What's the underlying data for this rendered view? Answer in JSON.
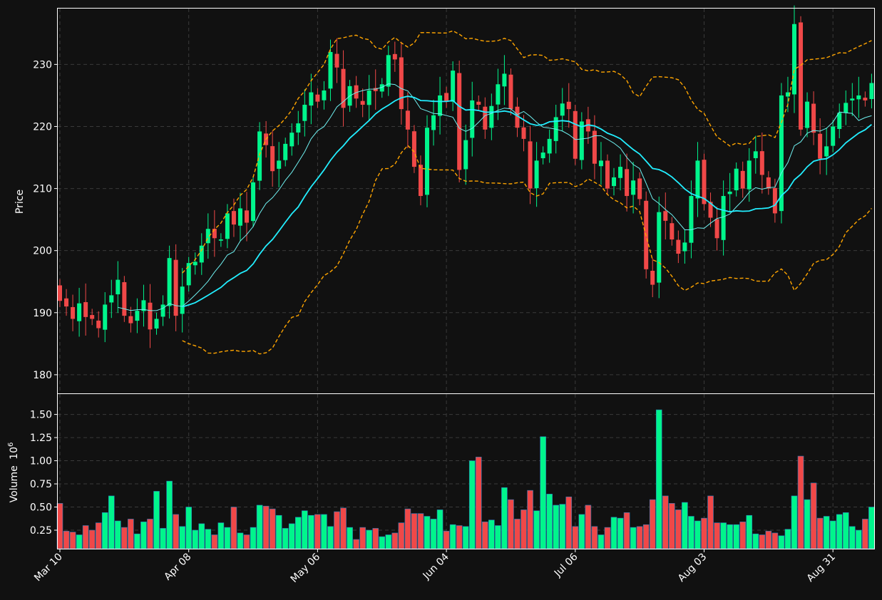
{
  "chart_data": {
    "type": "candlestick",
    "colors": {
      "background": "#111111",
      "up": "#00f58c",
      "down": "#f04848",
      "ma_fast": "#6ff0f0",
      "ma_slow": "#22eeff",
      "bands": "#ffa500",
      "grid": "#3a3a3a",
      "frame": "#ffffff"
    },
    "price_panel": {
      "ylabel": "Price",
      "ylim": [
        177,
        239
      ],
      "yticks": [
        180,
        190,
        200,
        210,
        220,
        230
      ],
      "grid": true
    },
    "volume_panel": {
      "ylabel": "Volume",
      "ylabel_exponent": "10",
      "ylabel_exponent_power": "6",
      "ylim": [
        0.05,
        1.72
      ],
      "yticks": [
        "0.25",
        "0.50",
        "0.75",
        "1.00",
        "1.25",
        "1.50"
      ],
      "ytick_values": [
        0.25,
        0.5,
        0.75,
        1.0,
        1.25,
        1.5
      ],
      "grid": true
    },
    "x_axis": {
      "tick_labels": [
        "Mar 10",
        "Apr 08",
        "May 06",
        "Jun 04",
        "Jul 06",
        "Aug 03",
        "Aug 31"
      ],
      "tick_positions": [
        0,
        20,
        40,
        60,
        80,
        100,
        120
      ],
      "n_days": 127,
      "label_rotation": 45
    },
    "closes": [
      191.9,
      191.0,
      189.0,
      191.5,
      189.3,
      189.0,
      187.5,
      191.3,
      192.8,
      195.3,
      189.5,
      188.3,
      190.3,
      192.0,
      187.3,
      189.0,
      191.3,
      198.8,
      189.5,
      194.2,
      198.0,
      198.2,
      200.8,
      203.5,
      202.0,
      201.8,
      206.0,
      204.2,
      206.8,
      204.5,
      211.0,
      219.2,
      217.0,
      212.8,
      214.5,
      217.2,
      219.0,
      220.5,
      223.5,
      225.5,
      224.0,
      225.8,
      232.0,
      229.5,
      223.0,
      226.5,
      224.5,
      223.5,
      225.8,
      225.7,
      226.8,
      231.5,
      230.8,
      222.8,
      219.5,
      213.5,
      208.8,
      219.8,
      221.8,
      225.0,
      224.0,
      229.0,
      213.0,
      217.8,
      224.2,
      223.5,
      219.5,
      223.3,
      226.8,
      228.5,
      222.8,
      219.8,
      218.0,
      210.0,
      214.5,
      215.8,
      218.0,
      221.5,
      223.7,
      222.8,
      214.8,
      220.8,
      219.2,
      214.0,
      214.5,
      210.0,
      211.8,
      213.5,
      208.8,
      211.3,
      208.3,
      197.0,
      194.5,
      206.2,
      204.8,
      201.8,
      199.5,
      201.3,
      208.8,
      214.5,
      207.5,
      205.3,
      202.0,
      208.8,
      209.5,
      213.2,
      210.0,
      214.5,
      216.0,
      212.2,
      210.0,
      206.0,
      225.0,
      225.5,
      236.5,
      219.5,
      224.0,
      219.0,
      214.8,
      216.8,
      220.0,
      222.2,
      223.8,
      224.5,
      225.0,
      224.2,
      227.0
    ],
    "volume_millions": [
      0.54,
      0.24,
      0.23,
      0.2,
      0.3,
      0.25,
      0.33,
      0.44,
      0.62,
      0.35,
      0.28,
      0.37,
      0.21,
      0.34,
      0.37,
      0.67,
      0.27,
      0.78,
      0.42,
      0.29,
      0.5,
      0.25,
      0.32,
      0.26,
      0.2,
      0.33,
      0.28,
      0.5,
      0.22,
      0.2,
      0.28,
      0.52,
      0.51,
      0.48,
      0.41,
      0.27,
      0.32,
      0.39,
      0.46,
      0.41,
      0.42,
      0.42,
      0.29,
      0.45,
      0.49,
      0.28,
      0.15,
      0.28,
      0.25,
      0.27,
      0.18,
      0.2,
      0.22,
      0.33,
      0.48,
      0.43,
      0.43,
      0.4,
      0.37,
      0.47,
      0.24,
      0.31,
      0.3,
      0.29,
      1.0,
      1.04,
      0.34,
      0.36,
      0.3,
      0.71,
      0.58,
      0.37,
      0.47,
      0.68,
      0.46,
      1.26,
      0.64,
      0.52,
      0.53,
      0.61,
      0.29,
      0.42,
      0.52,
      0.29,
      0.2,
      0.28,
      0.39,
      0.38,
      0.44,
      0.28,
      0.29,
      0.31,
      0.58,
      1.55,
      0.62,
      0.54,
      0.47,
      0.55,
      0.4,
      0.35,
      0.38,
      0.62,
      0.33,
      0.33,
      0.31,
      0.31,
      0.34,
      0.41,
      0.21,
      0.2,
      0.24,
      0.22,
      0.19,
      0.26,
      0.62,
      1.05,
      0.58,
      0.76,
      0.38,
      0.4,
      0.35,
      0.42,
      0.44,
      0.29,
      0.25,
      0.37,
      0.5
    ],
    "series": [
      {
        "type": "candlestick",
        "field": "closes"
      },
      {
        "type": "line",
        "window": 10
      },
      {
        "type": "line",
        "window": 20
      },
      {
        "type": "band",
        "window": 20,
        "k": 2
      }
    ]
  }
}
